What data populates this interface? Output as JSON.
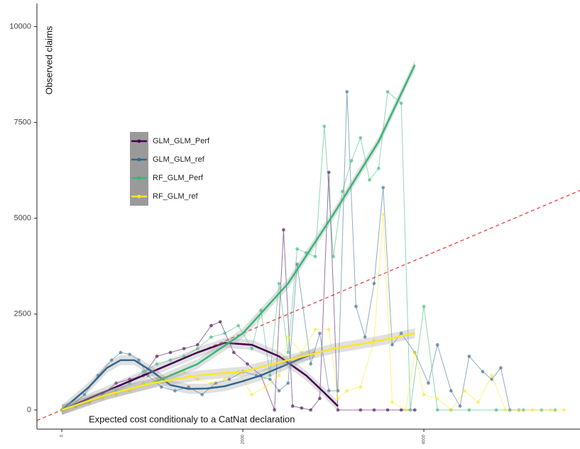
{
  "chart_data": {
    "type": "line",
    "y_label": "Observed claims",
    "annotation": "Expected cost conditionaly to a CatNat declaration",
    "xlim": [
      -275,
      5725
    ],
    "ylim": [
      -500,
      10600
    ],
    "xticks": [
      0,
      2000,
      4000
    ],
    "yticks": [
      0,
      2500,
      5000,
      7500,
      10000
    ],
    "grid": false,
    "legend": "left",
    "reference_line": {
      "x": [
        -275,
        5725
      ],
      "values": [
        -275,
        5725
      ],
      "color": "#e8413c"
    },
    "series": [
      {
        "name": "GLM_GLM_Perf",
        "color": "#440154",
        "x": [
          0,
          150,
          300,
          450,
          600,
          750,
          900,
          1050,
          1200,
          1350,
          1500,
          1650,
          1750,
          1900,
          2050,
          2200,
          2350,
          2450,
          2550,
          2650,
          2750,
          2850,
          2950,
          3050,
          3300,
          3450,
          3600,
          3750,
          3900
        ],
        "values": [
          0,
          100,
          200,
          400,
          700,
          800,
          900,
          1400,
          1500,
          1600,
          1700,
          2200,
          2300,
          1500,
          1200,
          900,
          0,
          4700,
          100,
          50,
          0,
          300,
          6200,
          0,
          0,
          0,
          0,
          0,
          0
        ],
        "smooth": {
          "x": [
            0,
            500,
            1000,
            1500,
            1800,
            2100,
            2400,
            2700,
            2900,
            3050
          ],
          "values": [
            0,
            500,
            1000,
            1500,
            1750,
            1700,
            1400,
            900,
            450,
            100
          ]
        }
      },
      {
        "name": "GLM_GLM_ref",
        "color": "#31688e",
        "x": [
          0,
          100,
          250,
          400,
          550,
          650,
          750,
          850,
          950,
          1100,
          1250,
          1400,
          1550,
          1700,
          1850,
          2000,
          2150,
          2300,
          2400,
          2500,
          2600,
          2750,
          2850,
          2950,
          3050,
          3150,
          3250,
          3350,
          3450,
          3550,
          3650,
          3750,
          3900,
          4050,
          4150,
          4300,
          4400,
          4500,
          4650,
          4750,
          4850,
          4950,
          5050
        ],
        "values": [
          0,
          100,
          400,
          900,
          1300,
          1500,
          1450,
          1300,
          900,
          600,
          500,
          600,
          400,
          700,
          800,
          1000,
          900,
          800,
          500,
          700,
          3800,
          1200,
          2000,
          500,
          500,
          8300,
          2700,
          1900,
          3300,
          5800,
          1700,
          2000,
          1500,
          700,
          1700,
          500,
          100,
          1400,
          1000,
          800,
          1100,
          0,
          0
        ],
        "smooth": {
          "x": [
            0,
            300,
            500,
            650,
            800,
            1000,
            1200,
            1400,
            1600,
            1800,
            2000,
            2200,
            2400,
            2600,
            2800
          ],
          "values": [
            0,
            600,
            1100,
            1300,
            1300,
            1000,
            650,
            550,
            560,
            620,
            750,
            900,
            1100,
            1300,
            1500
          ]
        }
      },
      {
        "name": "RF_GLM_Perf",
        "color": "#35b779",
        "x": [
          0,
          150,
          300,
          450,
          600,
          750,
          900,
          1050,
          1200,
          1350,
          1500,
          1650,
          1800,
          1950,
          2100,
          2200,
          2300,
          2400,
          2500,
          2600,
          2700,
          2800,
          2900,
          3000,
          3100,
          3200,
          3300,
          3400,
          3500,
          3600,
          3750,
          3850,
          4000,
          4150,
          4300,
          4500,
          4800,
          5100,
          5300,
          5450
        ],
        "values": [
          0,
          100,
          200,
          400,
          500,
          700,
          1000,
          1200,
          1300,
          1400,
          1600,
          1900,
          2000,
          2200,
          1600,
          2600,
          900,
          3300,
          1500,
          4200,
          4100,
          4000,
          7400,
          4000,
          5700,
          6500,
          7100,
          6000,
          6300,
          8300,
          8000,
          0,
          2700,
          0,
          0,
          0,
          0,
          0,
          0,
          0
        ],
        "smooth": {
          "x": [
            0,
            500,
            1000,
            1500,
            2000,
            2500,
            3000,
            3500,
            3900
          ],
          "values": [
            0,
            400,
            700,
            1200,
            2000,
            3300,
            5100,
            7000,
            9000
          ]
        }
      },
      {
        "name": "RF_GLM_ref",
        "color": "#fde725",
        "x": [
          0,
          150,
          300,
          450,
          600,
          750,
          900,
          1050,
          1200,
          1350,
          1500,
          1650,
          1800,
          1950,
          2100,
          2250,
          2400,
          2500,
          2650,
          2800,
          2950,
          3050,
          3150,
          3300,
          3450,
          3550,
          3650,
          3800,
          3900,
          4000,
          4150,
          4300,
          4450,
          4600,
          4750,
          4900,
          5050,
          5200,
          5400,
          5550
        ],
        "values": [
          0,
          100,
          200,
          300,
          400,
          500,
          700,
          800,
          900,
          1000,
          800,
          700,
          800,
          1000,
          400,
          600,
          900,
          1900,
          1500,
          2100,
          2100,
          300,
          500,
          600,
          1800,
          5100,
          200,
          0,
          1500,
          400,
          300,
          0,
          500,
          200,
          900,
          0,
          0,
          0,
          0,
          0
        ],
        "smooth": {
          "x": [
            0,
            500,
            1000,
            1500,
            2000,
            2500,
            3000,
            3500,
            3900
          ],
          "values": [
            0,
            400,
            700,
            900,
            1000,
            1300,
            1600,
            1800,
            2000
          ]
        }
      }
    ]
  }
}
